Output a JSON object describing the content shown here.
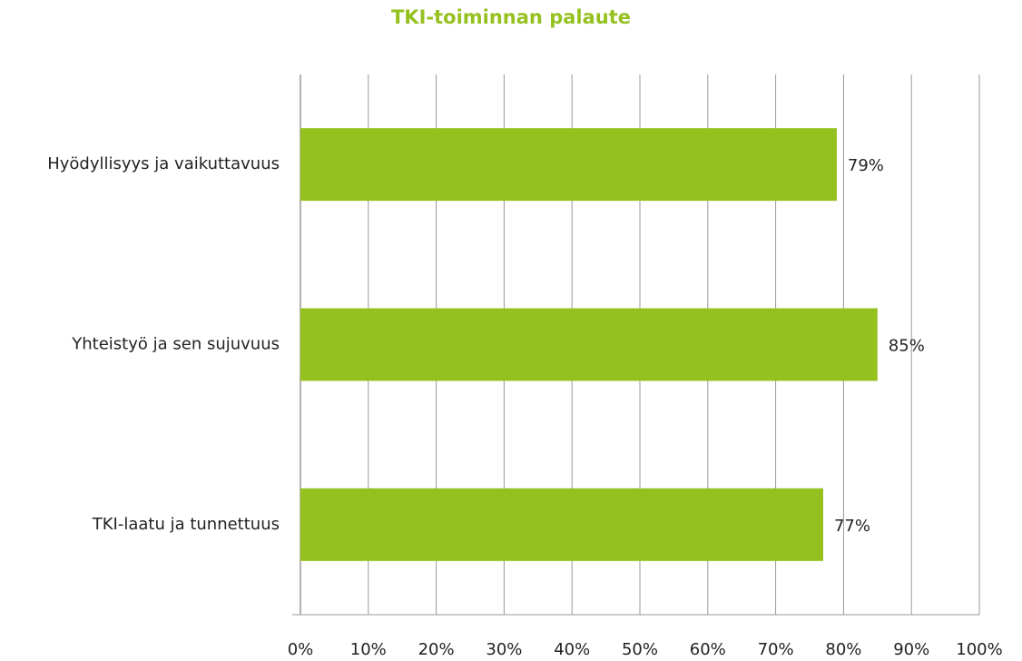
{
  "chart_data": {
    "type": "bar",
    "orientation": "horizontal",
    "title": "TKI-toiminnan palaute",
    "categories": [
      "Hyödyllisyys ja vaikuttavuus",
      "Yhteistyö ja sen sujuvuus",
      "TKI-laatu ja tunnettuus"
    ],
    "values": [
      79,
      85,
      77
    ],
    "value_labels": [
      "79%",
      "85%",
      "77%"
    ],
    "color": "#95c11f",
    "xlim": [
      0,
      100
    ],
    "xticks": [
      {
        "value": 0,
        "label": "0%"
      },
      {
        "value": 10,
        "label": "10%"
      },
      {
        "value": 20,
        "label": "20%"
      },
      {
        "value": 30,
        "label": "30%"
      },
      {
        "value": 40,
        "label": "40%"
      },
      {
        "value": 50,
        "label": "50%"
      },
      {
        "value": 60,
        "label": "60%"
      },
      {
        "value": 70,
        "label": "70%"
      },
      {
        "value": 80,
        "label": "80%"
      },
      {
        "value": 90,
        "label": "90%"
      },
      {
        "value": 100,
        "label": "100%"
      }
    ],
    "grid": true
  }
}
